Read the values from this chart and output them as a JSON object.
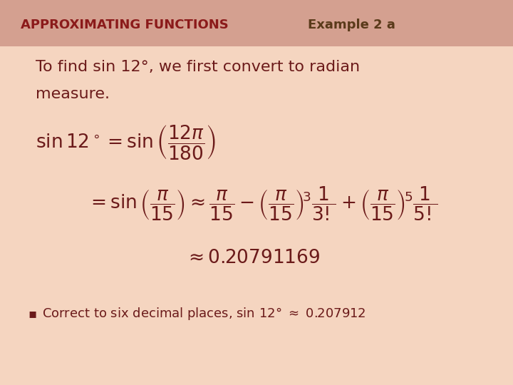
{
  "background_color": "#f5d5c0",
  "header_color": "#d4a090",
  "title_text": "APPROXIMATING FUNCTIONS",
  "title_color": "#8B1A1A",
  "example_text": "Example 2 a",
  "example_color": "#5a3a1a",
  "body_color": "#6b1a1a",
  "bullet_color": "#6b1a1a",
  "line1": "To find sin 12°, we first convert to radian",
  "line2": "measure.",
  "eq1": "$\\sin 12^\\circ = \\sin \\left( \\dfrac{12\\pi}{180} \\right)$",
  "eq2": "$= \\sin \\left( \\dfrac{\\pi}{15} \\right) \\approx \\dfrac{\\pi}{15} - \\left( \\dfrac{\\pi}{15} \\right)^{\\!3} \\dfrac{1}{3!} + \\left( \\dfrac{\\pi}{15} \\right)^{\\!5} \\dfrac{1}{5!}$",
  "eq3": "$\\approx 0.20791169$",
  "bullet": "Correct to six decimal places, sin 12° $\\approx$ 0.207912",
  "figsize": [
    7.2,
    5.4
  ],
  "dpi": 100
}
